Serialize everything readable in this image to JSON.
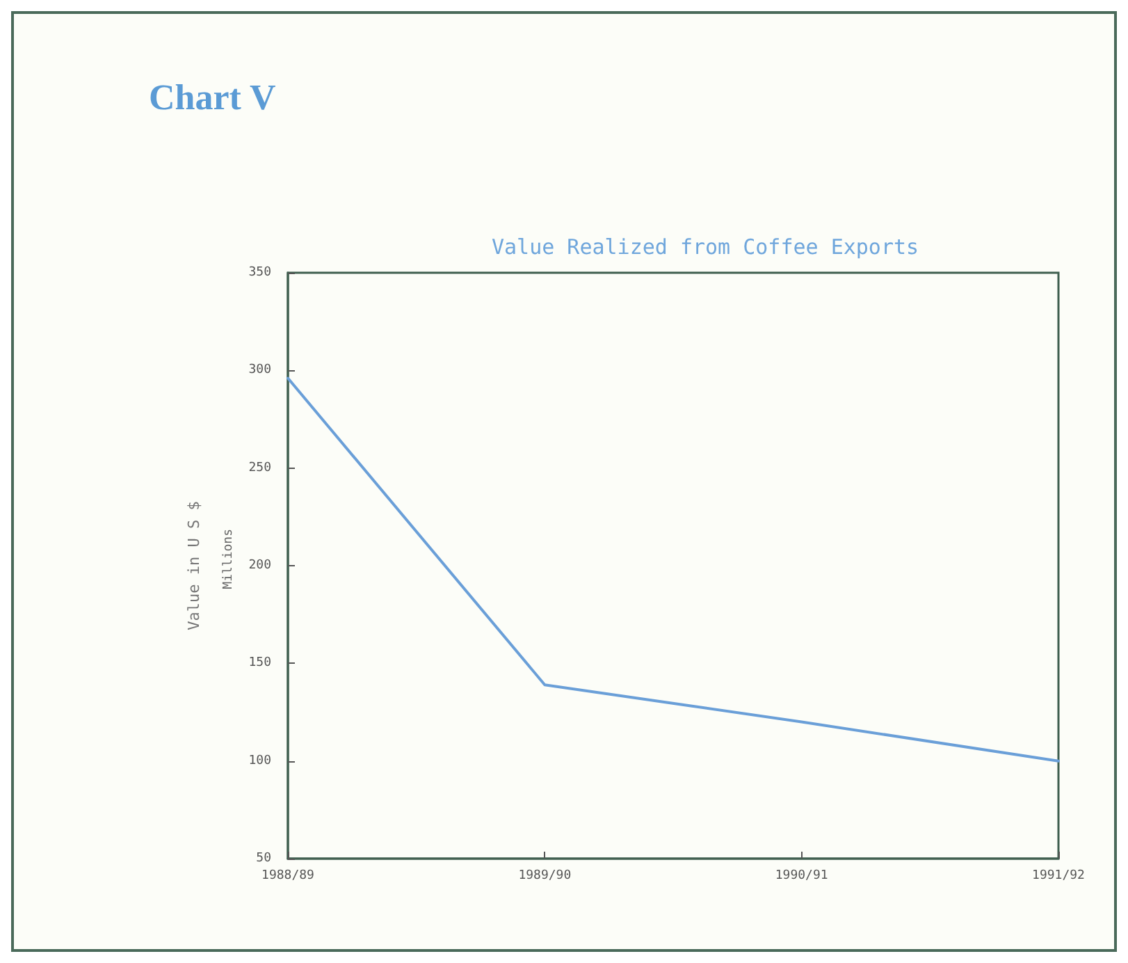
{
  "chart_data": {
    "type": "line",
    "title": "Chart V",
    "subtitle": "Value Realized from Coffee Exports",
    "ylabel": "Value in U S $",
    "annotations": [
      "Millions"
    ],
    "categories": [
      "1988/89",
      "1989/90",
      "1990/91",
      "1991/92"
    ],
    "series": [
      {
        "color": "#6a9fd8",
        "values": [
          296,
          139,
          120,
          100
        ]
      }
    ],
    "ylim": [
      50,
      350
    ],
    "yticks": [
      50,
      100,
      150,
      200,
      250,
      300,
      350
    ],
    "grid": false,
    "marker": "none",
    "line_style": "solid"
  }
}
